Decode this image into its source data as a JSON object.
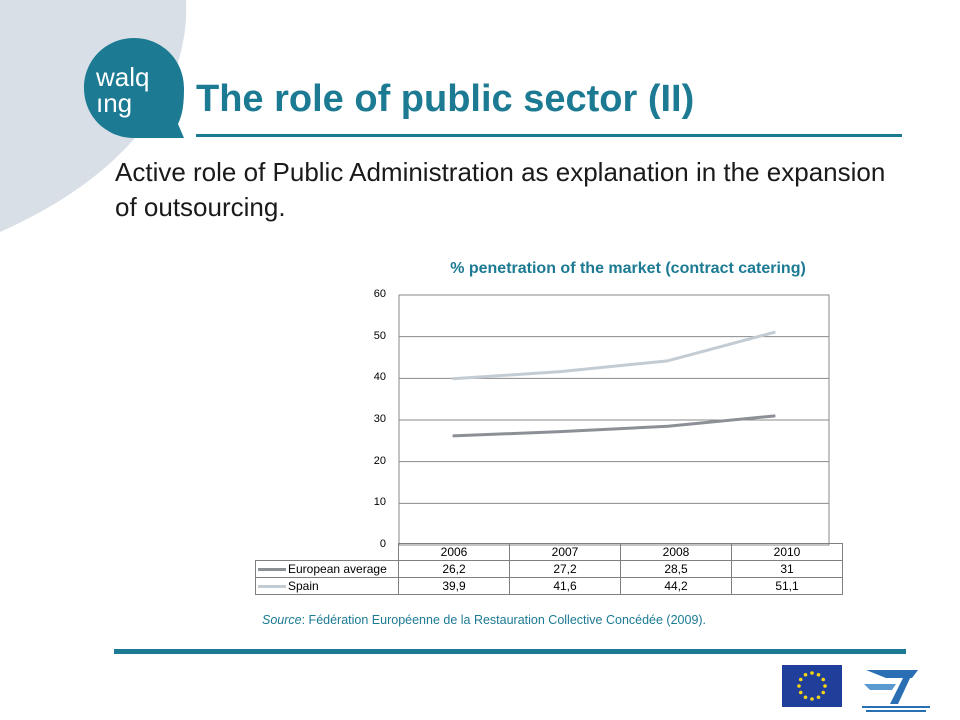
{
  "slide": {
    "title": "The role of public sector (II)",
    "bullet": "Active role of Public Administration as explanation in the expansion of outsourcing.",
    "source_label": "Source",
    "source_text": ": Fédération Européenne de la Restauration Collective Concédée (2009)."
  },
  "logo": {
    "line1": "walq",
    "line2": "ıng"
  },
  "colors": {
    "accent": "#1c7a93",
    "corner": "#d8dfe6",
    "european": "#8c9096",
    "spain": "#c4ccd3"
  },
  "icons": [
    "walqing-logo",
    "eu-flag-icon",
    "seventh-framework-programme-logo"
  ],
  "chart_data": {
    "type": "line",
    "title": "% penetration of the market (contract catering)",
    "categories": [
      "2006",
      "2007",
      "2008",
      "2010"
    ],
    "y_ticks": [
      "60",
      "50",
      "40",
      "30",
      "20",
      "10",
      "0"
    ],
    "ylim": [
      0,
      60
    ],
    "grid": true,
    "legend": "data-table",
    "series": [
      {
        "name": "European average",
        "values": [
          26.2,
          27.2,
          28.5,
          31
        ],
        "labels": [
          "26,2",
          "27,2",
          "28,5",
          "31"
        ]
      },
      {
        "name": "Spain",
        "values": [
          39.9,
          41.6,
          44.2,
          51.1
        ],
        "labels": [
          "39,9",
          "41,6",
          "44,2",
          "51,1"
        ]
      }
    ]
  }
}
